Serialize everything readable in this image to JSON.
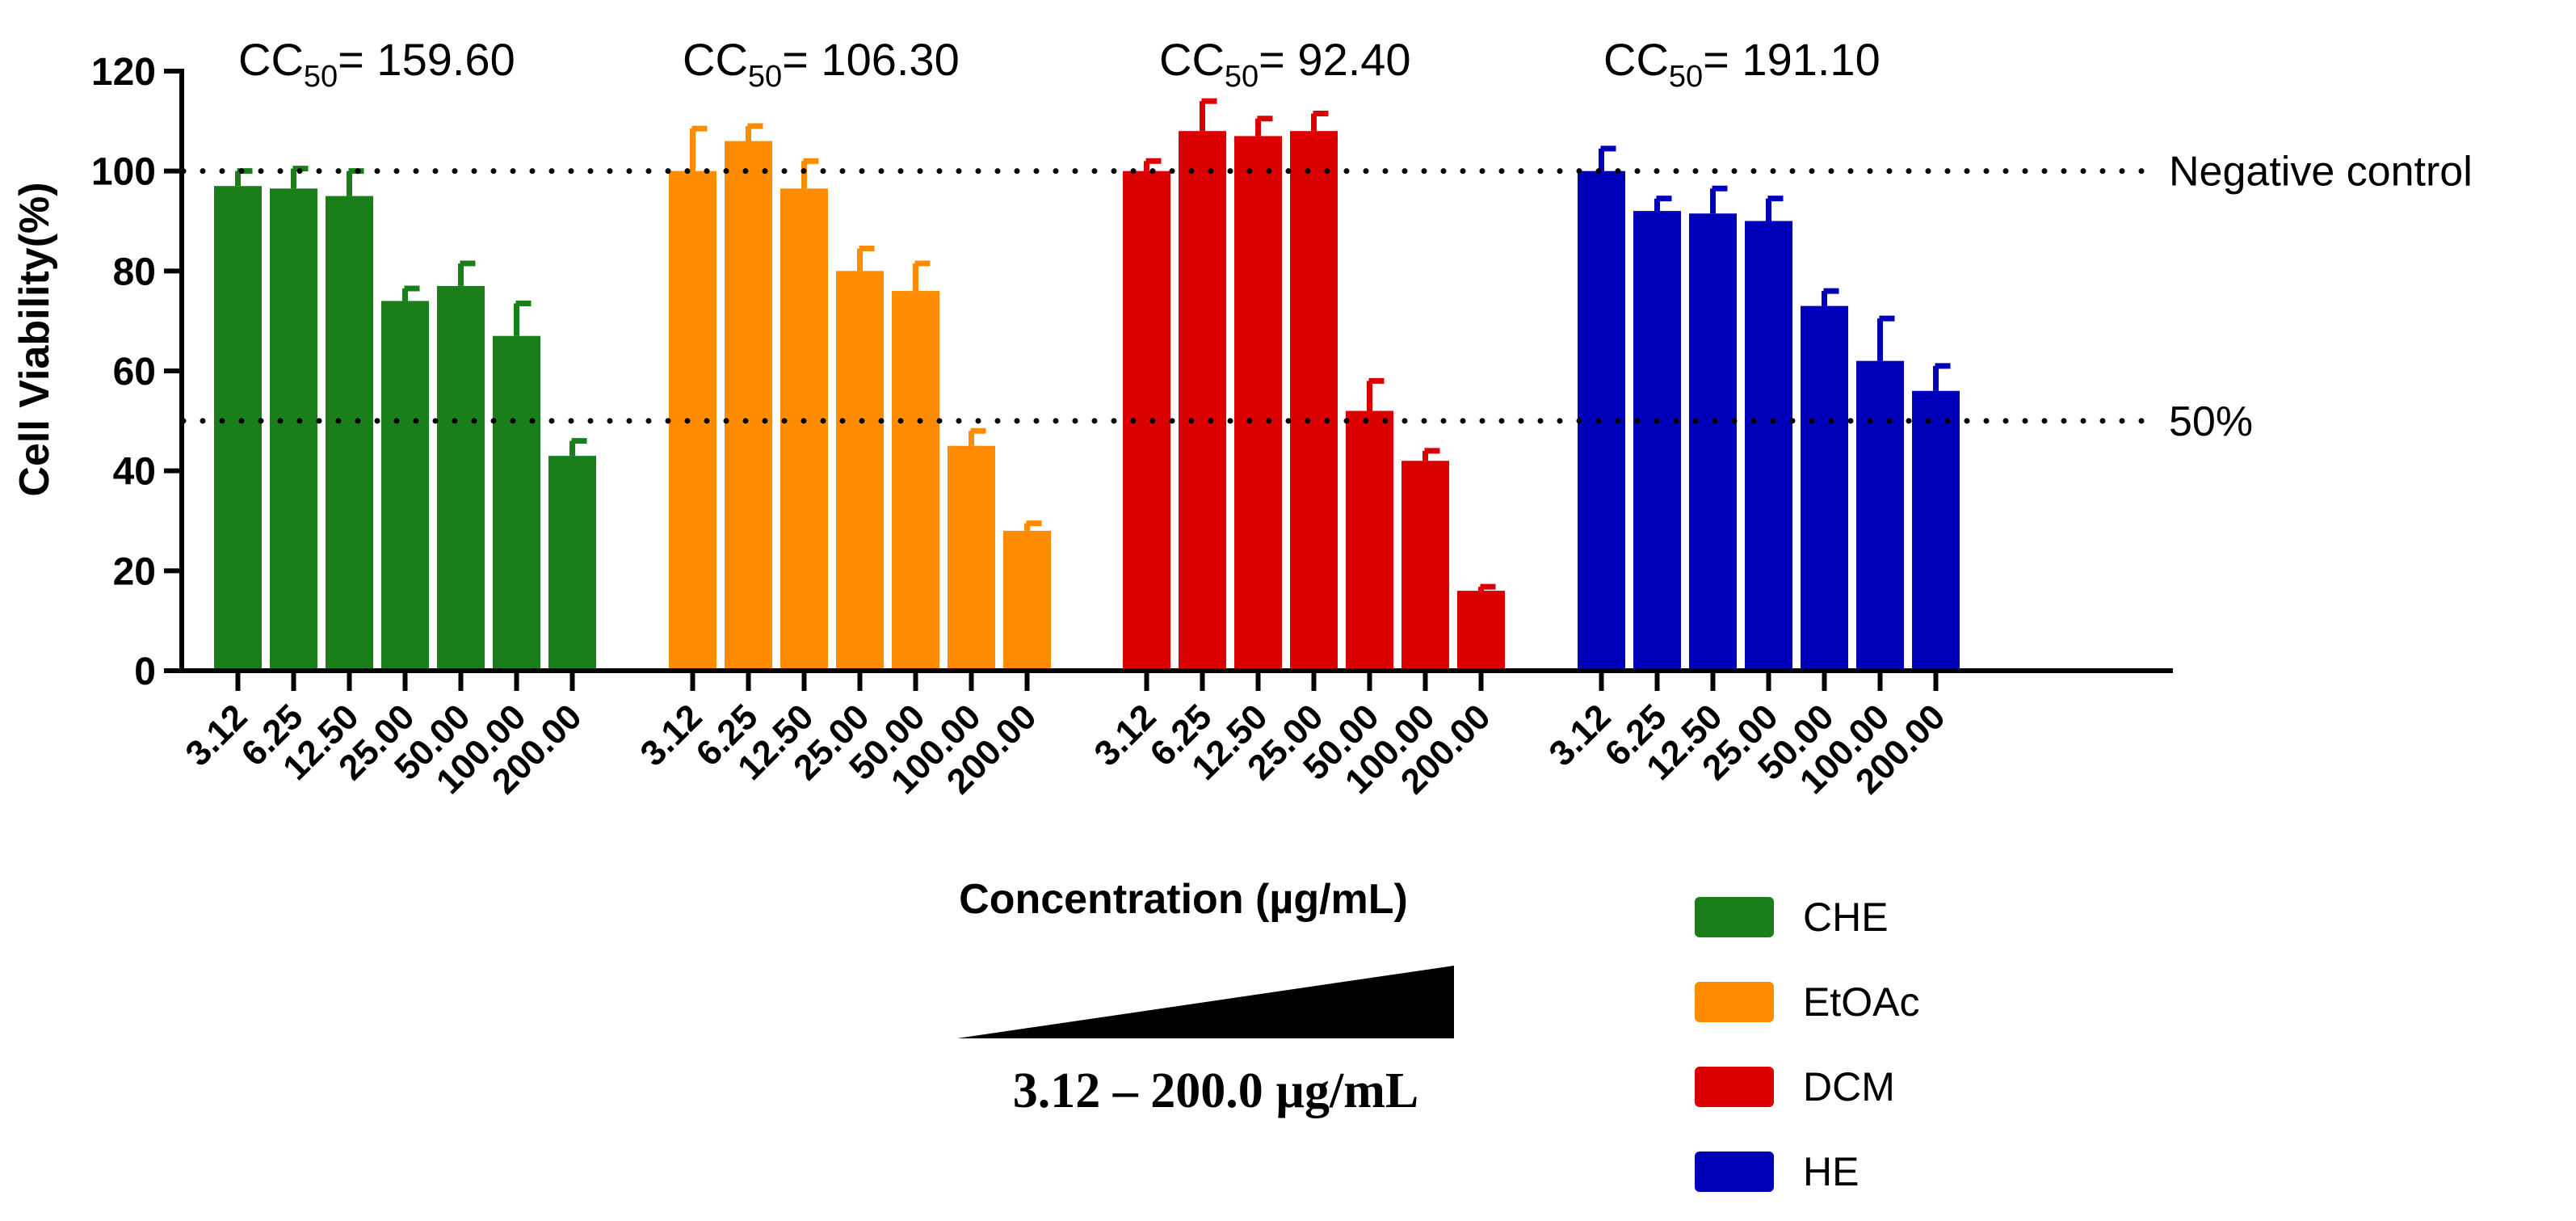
{
  "chart_data": {
    "type": "bar",
    "ylabel": "Cell Viability(%)",
    "xlabel": "Concentration (µg/mL)",
    "ylim": [
      0,
      120
    ],
    "yticks": [
      0,
      20,
      40,
      60,
      80,
      100,
      120
    ],
    "categories": [
      "3.12",
      "6.25",
      "12.50",
      "25.00",
      "50.00",
      "100.00",
      "200.00"
    ],
    "series": [
      {
        "name": "CHE",
        "color": "#1a7f1a",
        "values": [
          97,
          96.5,
          95,
          74,
          77,
          67,
          43
        ],
        "errors": [
          3,
          4,
          5,
          2.5,
          4.5,
          6.5,
          3
        ],
        "cc50_label": "CC",
        "cc50_sub": "50",
        "cc50_value": "= 159.60"
      },
      {
        "name": "EtOAc",
        "color": "#ff8c00",
        "values": [
          100,
          106,
          96.5,
          80,
          76,
          45,
          28
        ],
        "errors": [
          8.5,
          3,
          5.5,
          4.5,
          5.5,
          3,
          1.5
        ],
        "cc50_label": "CC",
        "cc50_sub": "50",
        "cc50_value": "= 106.30"
      },
      {
        "name": "DCM",
        "color": "#dd0000",
        "values": [
          100,
          108,
          107,
          108,
          52,
          42,
          16
        ],
        "errors": [
          2,
          6,
          3.5,
          3.5,
          6,
          2,
          0.8
        ],
        "cc50_label": "CC",
        "cc50_sub": "50",
        "cc50_value": "= 92.40"
      },
      {
        "name": "HE",
        "color": "#0000bb",
        "values": [
          100,
          92,
          91.5,
          90,
          73,
          62,
          56
        ],
        "errors": [
          4.5,
          2.5,
          5,
          4.5,
          3,
          8.5,
          5
        ],
        "cc50_label": "CC",
        "cc50_sub": "50",
        "cc50_value": "= 191.10"
      }
    ],
    "reference_lines": [
      {
        "value": 100,
        "label": "Negative control"
      },
      {
        "value": 50,
        "label": "50%"
      }
    ],
    "gradient_label": "3.12 – 200.0 µg/mL",
    "legend_position": "bottom-right"
  }
}
